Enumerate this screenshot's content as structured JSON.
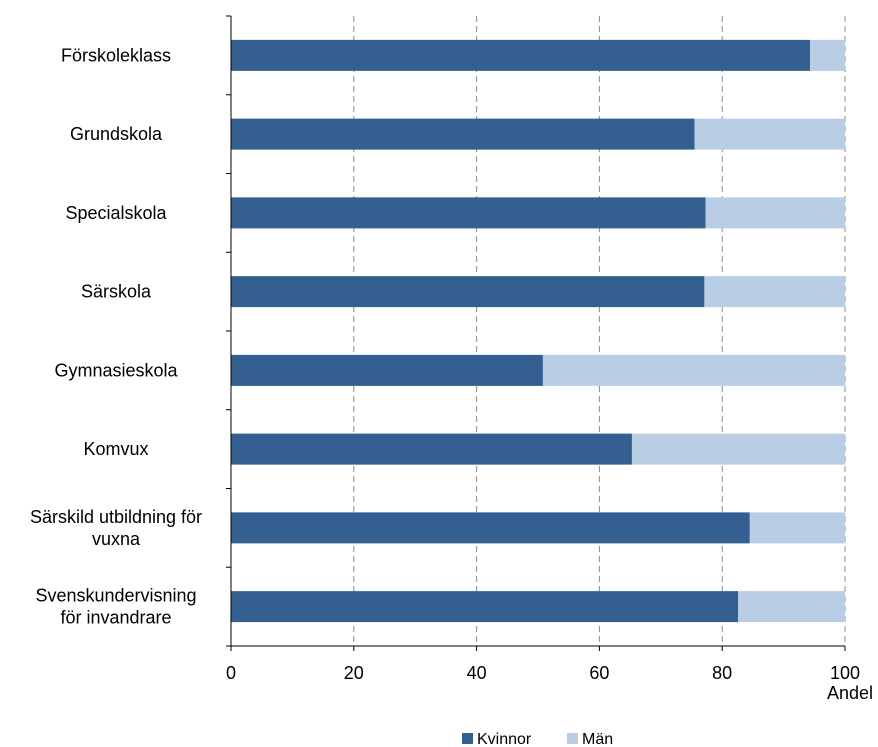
{
  "chart_data": {
    "type": "bar",
    "orientation": "horizontal",
    "stacked": true,
    "categories": [
      [
        "Förskoleklass"
      ],
      [
        "Grundskola"
      ],
      [
        "Specialskola"
      ],
      [
        "Särskola"
      ],
      [
        "Gymnasieskola"
      ],
      [
        "Komvux"
      ],
      [
        "Särskild utbildning för",
        "vuxna"
      ],
      [
        "Svenskundervisning",
        "för invandrare"
      ]
    ],
    "series": [
      {
        "name": "Kvinnor",
        "color": "#336091",
        "values": [
          94.3,
          75.5,
          77.3,
          77.1,
          50.8,
          65.3,
          84.5,
          82.6
        ]
      },
      {
        "name": "Män",
        "color": "#b9cde5",
        "values": [
          5.7,
          24.5,
          22.7,
          22.9,
          49.2,
          34.7,
          15.5,
          17.4
        ]
      }
    ],
    "xlim": [
      0,
      100
    ],
    "xticks": [
      0,
      20,
      40,
      60,
      80,
      100
    ],
    "xticks_labels": [
      "0",
      "20",
      "40",
      "60",
      "80",
      "100"
    ],
    "xlabel": "Andel",
    "title": "",
    "grid": "vertical dashed",
    "legend": "bottom"
  }
}
